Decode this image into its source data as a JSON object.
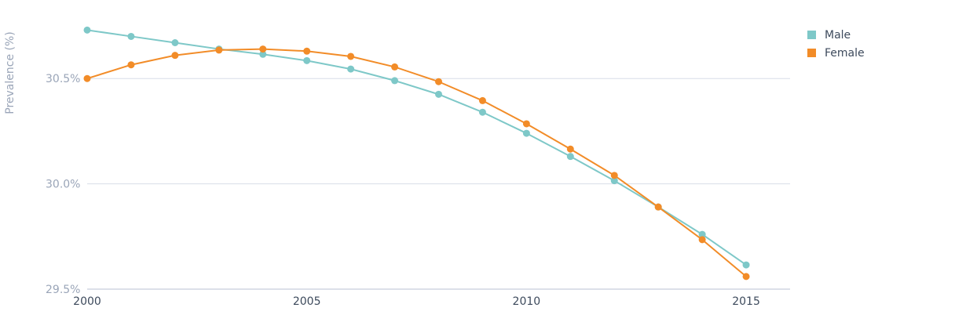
{
  "chart_data": {
    "type": "line",
    "title": "",
    "xlabel": "",
    "ylabel": "Prevalence (%)",
    "x": [
      2000,
      2001,
      2002,
      2003,
      2004,
      2005,
      2006,
      2007,
      2008,
      2009,
      2010,
      2011,
      2012,
      2013,
      2014,
      2015
    ],
    "xlim": [
      2000,
      2016
    ],
    "x_ticks": [
      2000,
      2005,
      2010,
      2015
    ],
    "x_tick_labels": [
      "2000",
      "2005",
      "2010",
      "2015"
    ],
    "ylim": [
      29.5,
      30.75
    ],
    "y_ticks": [
      29.5,
      30.0,
      30.5
    ],
    "y_tick_labels": [
      "29.5%",
      "30.0%",
      "30.5%"
    ],
    "grid": "horizontal",
    "legend_position": "top-right",
    "series": [
      {
        "name": "Male",
        "color": "#7ec8c8",
        "values": [
          30.73,
          30.7,
          30.67,
          30.64,
          30.615,
          30.585,
          30.545,
          30.49,
          30.425,
          30.34,
          30.24,
          30.13,
          30.015,
          29.89,
          29.76,
          29.615
        ]
      },
      {
        "name": "Female",
        "color": "#f28c28",
        "values": [
          30.5,
          30.565,
          30.61,
          30.635,
          30.64,
          30.63,
          30.605,
          30.555,
          30.485,
          30.395,
          30.285,
          30.165,
          30.04,
          29.89,
          29.735,
          29.56
        ]
      }
    ]
  }
}
